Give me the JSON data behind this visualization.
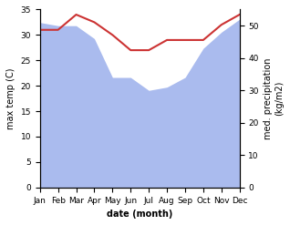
{
  "months": [
    "Jan",
    "Feb",
    "Mar",
    "Apr",
    "May",
    "Jun",
    "Jul",
    "Aug",
    "Sep",
    "Oct",
    "Nov",
    "Dec"
  ],
  "max_temp": [
    31.0,
    31.0,
    34.0,
    32.5,
    30.0,
    27.0,
    27.0,
    29.0,
    29.0,
    29.0,
    32.0,
    34.0
  ],
  "precipitation": [
    51.0,
    50.0,
    50.0,
    46.0,
    34.0,
    34.0,
    30.0,
    31.0,
    34.0,
    43.0,
    48.0,
    52.0
  ],
  "temp_color": "#cc3333",
  "precip_color_fill": "#aabbee",
  "ylabel_left": "max temp (C)",
  "ylabel_right": "med. precipitation\n(kg/m2)",
  "xlabel": "date (month)",
  "ylim_left": [
    0,
    35
  ],
  "ylim_right": [
    0,
    55
  ],
  "background_color": "#ffffff"
}
